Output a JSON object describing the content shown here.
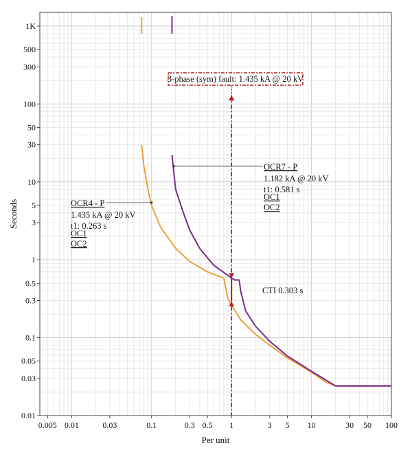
{
  "chart_data": {
    "type": "line",
    "xlabel": "Per unit",
    "ylabel": "Seconds",
    "xscale": "log",
    "yscale": "log",
    "xlim": [
      0.004,
      100
    ],
    "ylim": [
      0.01,
      1500
    ],
    "grid": true,
    "x_ticks": [
      {
        "v": 0.005,
        "label": "0.005"
      },
      {
        "v": 0.01,
        "label": "0.01"
      },
      {
        "v": 0.03,
        "label": "0.03"
      },
      {
        "v": 0.1,
        "label": "0.1"
      },
      {
        "v": 0.3,
        "label": "0.3"
      },
      {
        "v": 0.5,
        "label": "0.5"
      },
      {
        "v": 1,
        "label": "1"
      },
      {
        "v": 3,
        "label": "3"
      },
      {
        "v": 5,
        "label": "5"
      },
      {
        "v": 10,
        "label": "10"
      },
      {
        "v": 30,
        "label": "30"
      },
      {
        "v": 50,
        "label": "50"
      },
      {
        "v": 100,
        "label": "100"
      }
    ],
    "y_ticks": [
      {
        "v": 0.01,
        "label": "0.01"
      },
      {
        "v": 0.03,
        "label": "0.03"
      },
      {
        "v": 0.05,
        "label": "0.05"
      },
      {
        "v": 0.1,
        "label": "0.1"
      },
      {
        "v": 0.3,
        "label": "0.3"
      },
      {
        "v": 0.5,
        "label": "0.5"
      },
      {
        "v": 1,
        "label": "1"
      },
      {
        "v": 3,
        "label": "3"
      },
      {
        "v": 5,
        "label": "5"
      },
      {
        "v": 10,
        "label": "10"
      },
      {
        "v": 30,
        "label": "30"
      },
      {
        "v": 50,
        "label": "50"
      },
      {
        "v": 100,
        "label": "100"
      },
      {
        "v": 300,
        "label": "300"
      },
      {
        "v": 500,
        "label": "500"
      },
      {
        "v": 1000,
        "label": "1K"
      }
    ],
    "series": [
      {
        "name": "OCR4 - P",
        "color": "#E8A33A",
        "points": [
          [
            0.075,
            30
          ],
          [
            0.08,
            16
          ],
          [
            0.09,
            8
          ],
          [
            0.1,
            5
          ],
          [
            0.13,
            2.6
          ],
          [
            0.2,
            1.4
          ],
          [
            0.3,
            0.95
          ],
          [
            0.5,
            0.7
          ],
          [
            0.8,
            0.58
          ],
          [
            0.9,
            0.32
          ],
          [
            1.0,
            0.26
          ],
          [
            1.3,
            0.17
          ],
          [
            2,
            0.11
          ],
          [
            3,
            0.08
          ],
          [
            5,
            0.055
          ],
          [
            10,
            0.036
          ],
          [
            15,
            0.027
          ],
          [
            20,
            0.024
          ],
          [
            100,
            0.024
          ]
        ],
        "segments": [
          [
            [
              0.075,
              1300
            ],
            [
              0.075,
              800
            ]
          ]
        ]
      },
      {
        "name": "OCR7 - P",
        "color": "#7B2A8A",
        "points": [
          [
            0.18,
            22
          ],
          [
            0.19,
            13
          ],
          [
            0.2,
            8
          ],
          [
            0.25,
            4
          ],
          [
            0.3,
            2.4
          ],
          [
            0.4,
            1.4
          ],
          [
            0.6,
            0.85
          ],
          [
            0.9,
            0.63
          ],
          [
            1.0,
            0.58
          ],
          [
            1.1,
            0.55
          ],
          [
            1.25,
            0.55
          ],
          [
            1.3,
            0.4
          ],
          [
            1.5,
            0.22
          ],
          [
            2,
            0.14
          ],
          [
            3,
            0.09
          ],
          [
            5,
            0.058
          ],
          [
            10,
            0.037
          ],
          [
            20,
            0.024
          ],
          [
            100,
            0.024
          ]
        ],
        "segments": [
          [
            [
              0.18,
              1350
            ],
            [
              0.18,
              800
            ]
          ]
        ]
      }
    ],
    "fault_line": {
      "x": 1.0,
      "y_top": 130,
      "color": "#B01E1E",
      "label": "3-phase (sym) fault: 1.435 kA @ 20 kV"
    },
    "annotations": [
      {
        "lines": [
          "OCR4 - P",
          "1.435 kA @ 20 kV",
          "t1: 0.263 s",
          "OC1",
          "OC2"
        ]
      },
      {
        "lines": [
          "OCR7 - P",
          "1.182 kA @ 20 kV",
          "t1: 0.581 s",
          "OC1",
          "OC2"
        ]
      },
      {
        "lines": [
          "CTI 0.303 s"
        ]
      }
    ]
  }
}
